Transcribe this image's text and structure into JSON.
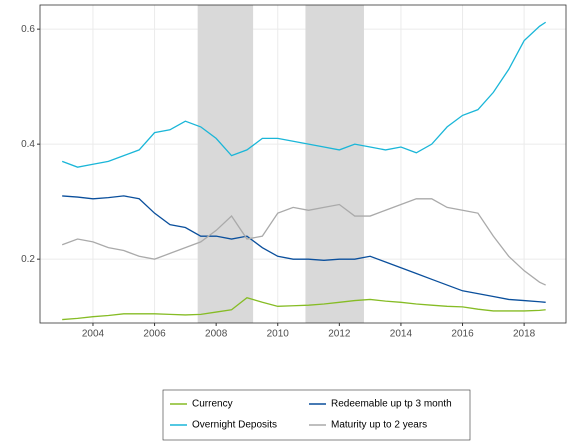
{
  "chart_data": {
    "type": "line",
    "x": [
      2003,
      2003.5,
      2004,
      2004.5,
      2005,
      2005.5,
      2006,
      2006.5,
      2007,
      2007.5,
      2008,
      2008.5,
      2009,
      2009.5,
      2010,
      2010.5,
      2011,
      2011.5,
      2012,
      2012.5,
      2013,
      2013.5,
      2014,
      2014.5,
      2015,
      2015.5,
      2016,
      2016.5,
      2017,
      2017.5,
      2018,
      2018.5,
      2018.7
    ],
    "series": [
      {
        "name": "Currency",
        "color": "#86bc25",
        "values": [
          0.095,
          0.097,
          0.1,
          0.102,
          0.105,
          0.105,
          0.105,
          0.104,
          0.103,
          0.104,
          0.108,
          0.112,
          0.133,
          0.125,
          0.118,
          0.119,
          0.12,
          0.122,
          0.125,
          0.128,
          0.13,
          0.127,
          0.125,
          0.122,
          0.12,
          0.118,
          0.117,
          0.113,
          0.11,
          0.11,
          0.11,
          0.111,
          0.112
        ]
      },
      {
        "name": "Redeemable up tp 3 month",
        "color": "#0a4f9c",
        "values": [
          0.31,
          0.308,
          0.305,
          0.307,
          0.31,
          0.305,
          0.28,
          0.26,
          0.255,
          0.24,
          0.24,
          0.235,
          0.24,
          0.22,
          0.205,
          0.2,
          0.2,
          0.198,
          0.2,
          0.2,
          0.205,
          0.195,
          0.185,
          0.175,
          0.165,
          0.155,
          0.145,
          0.14,
          0.135,
          0.13,
          0.128,
          0.126,
          0.125
        ]
      },
      {
        "name": "Overnight Deposits",
        "color": "#1ab6d8",
        "values": [
          0.37,
          0.36,
          0.365,
          0.37,
          0.38,
          0.39,
          0.42,
          0.425,
          0.44,
          0.43,
          0.41,
          0.38,
          0.39,
          0.41,
          0.41,
          0.405,
          0.4,
          0.395,
          0.39,
          0.4,
          0.395,
          0.39,
          0.395,
          0.385,
          0.4,
          0.43,
          0.45,
          0.46,
          0.49,
          0.53,
          0.58,
          0.605,
          0.612
        ]
      },
      {
        "name": "Maturity up to 2 years",
        "color": "#aaaaaa",
        "values": [
          0.225,
          0.235,
          0.23,
          0.22,
          0.215,
          0.205,
          0.2,
          0.21,
          0.22,
          0.23,
          0.25,
          0.275,
          0.235,
          0.24,
          0.28,
          0.29,
          0.285,
          0.29,
          0.295,
          0.275,
          0.275,
          0.285,
          0.295,
          0.305,
          0.305,
          0.29,
          0.285,
          0.28,
          0.24,
          0.205,
          0.18,
          0.16,
          0.155
        ]
      }
    ],
    "shaded_periods": [
      [
        2007.4,
        2009.2
      ],
      [
        2010.9,
        2012.8
      ]
    ],
    "xlim": [
      2002.28,
      2019.36
    ],
    "xticks": [
      2004,
      2006,
      2008,
      2010,
      2012,
      2014,
      2016,
      2018
    ],
    "ylim": [
      0.089,
      0.642
    ],
    "yticks": [
      0.2,
      0.4,
      0.6
    ],
    "grid": true,
    "legend": "bottom"
  }
}
